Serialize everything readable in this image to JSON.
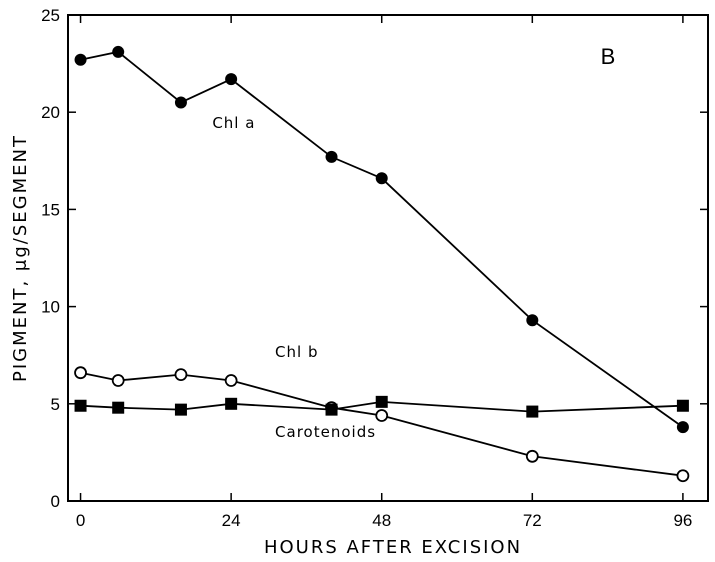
{
  "chart_data": {
    "type": "line",
    "panel_label": "B",
    "xlabel": "HOURS AFTER EXCISION",
    "ylabel": "PIGMENT, μg/SEGMENT",
    "xlim": [
      -2,
      100
    ],
    "ylim": [
      0,
      25
    ],
    "xticks": [
      0,
      24,
      48,
      72,
      96
    ],
    "yticks": [
      0,
      5,
      10,
      15,
      20,
      25
    ],
    "grid": false,
    "series": [
      {
        "name": "Chl a",
        "marker": "filled-circle",
        "x": [
          0,
          6,
          16,
          24,
          40,
          48,
          72,
          96
        ],
        "y": [
          22.7,
          23.1,
          20.5,
          21.7,
          17.7,
          16.6,
          9.3,
          3.8
        ]
      },
      {
        "name": "Chl b",
        "marker": "open-circle",
        "x": [
          0,
          6,
          16,
          24,
          40,
          48,
          72,
          96
        ],
        "y": [
          6.6,
          6.2,
          6.5,
          6.2,
          4.8,
          4.4,
          2.3,
          1.3
        ]
      },
      {
        "name": "Carotenoids",
        "marker": "filled-square",
        "x": [
          0,
          6,
          16,
          24,
          40,
          48,
          72,
          96
        ],
        "y": [
          4.9,
          4.8,
          4.7,
          5.0,
          4.7,
          5.1,
          4.6,
          4.9
        ]
      }
    ],
    "annotations": [
      {
        "text": "Chl a",
        "x": 21,
        "y": 19.2
      },
      {
        "text": "Chl b",
        "x": 31,
        "y": 7.4
      },
      {
        "text": "Carotenoids",
        "x": 31,
        "y": 3.3
      }
    ]
  }
}
